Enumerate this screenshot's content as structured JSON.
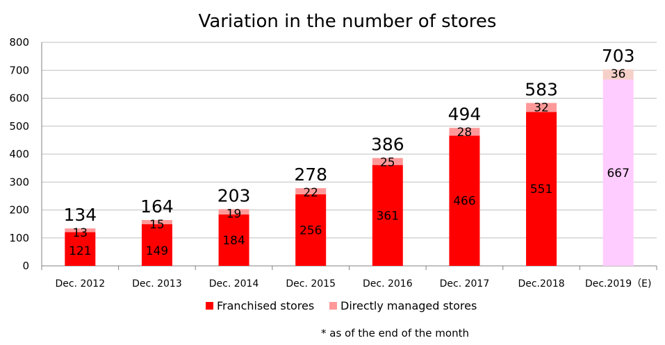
{
  "chart_data": {
    "type": "bar",
    "stacked": true,
    "title": "Variation in the number of stores",
    "categories": [
      "Dec. 2012",
      "Dec. 2013",
      "Dec. 2014",
      "Dec. 2015",
      "Dec. 2016",
      "Dec. 2017",
      "Dec.2018",
      "Dec.2019（E)"
    ],
    "series": [
      {
        "name": "Franchised stores",
        "values": [
          121,
          149,
          184,
          256,
          361,
          466,
          551,
          667
        ],
        "color": "#FF0000"
      },
      {
        "name": "Directly managed stores",
        "values": [
          13,
          15,
          19,
          22,
          25,
          28,
          32,
          36
        ],
        "color": "#FF9999"
      }
    ],
    "totals": [
      134,
      164,
      203,
      278,
      386,
      494,
      583,
      703
    ],
    "estimate_colors": {
      "franchised": "#FFCCFF",
      "directly_managed": "#F5D0C8"
    },
    "ylim": [
      0,
      800
    ],
    "yticks": [
      0,
      100,
      200,
      300,
      400,
      500,
      600,
      700,
      800
    ],
    "grid": true,
    "legend_position": "bottom"
  },
  "footnote": "* as of the end of the month"
}
